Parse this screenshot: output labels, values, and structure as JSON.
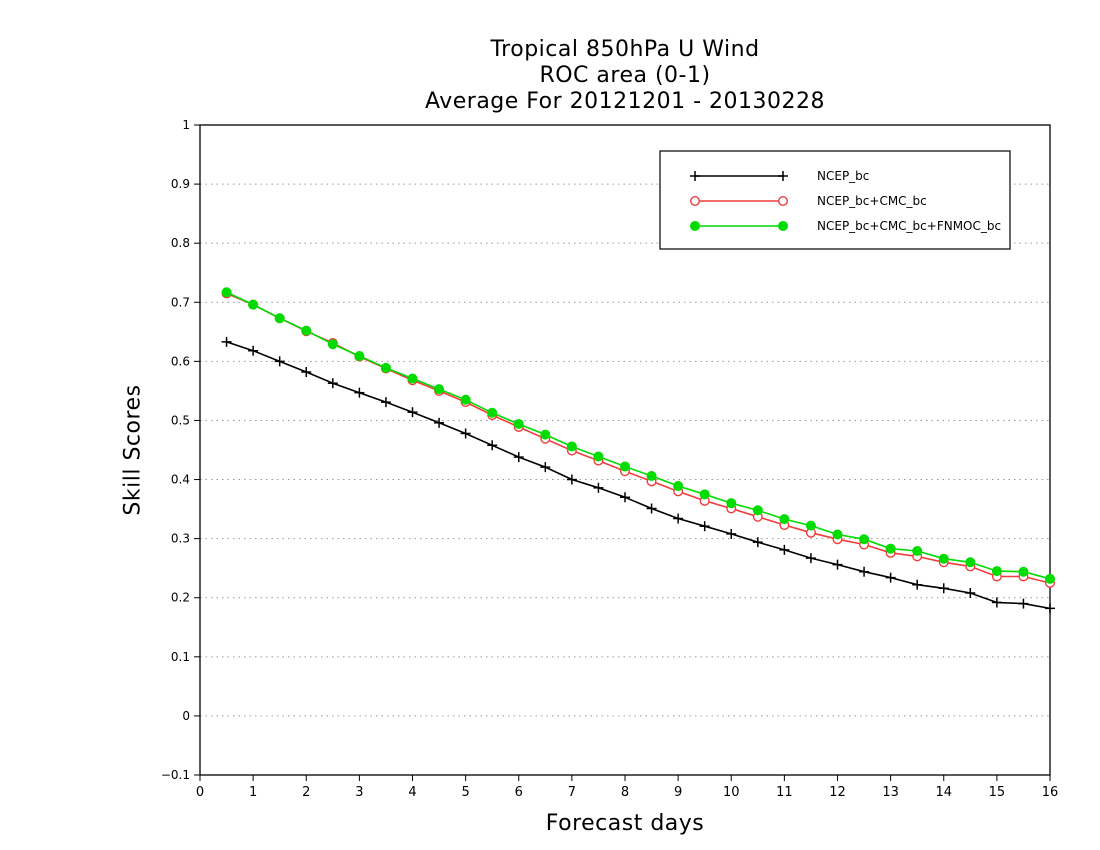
{
  "chart_data": {
    "type": "line",
    "title": [
      "Tropical 850hPa U Wind",
      "ROC area (0-1)",
      "Average For 20121201 - 20130228"
    ],
    "xlabel": "Forecast days",
    "ylabel": "Skill Scores",
    "xlim": [
      0,
      16
    ],
    "ylim": [
      -0.1,
      1
    ],
    "xticks": [
      0,
      1,
      2,
      3,
      4,
      5,
      6,
      7,
      8,
      9,
      10,
      11,
      12,
      13,
      14,
      15,
      16
    ],
    "xtick_labels": [
      "0",
      "1",
      "2",
      "3",
      "4",
      "5",
      "6",
      "7",
      "8",
      "9",
      "10",
      "11",
      "12",
      "13",
      "14",
      "15",
      "16"
    ],
    "yticks": [
      -0.1,
      0,
      0.1,
      0.2,
      0.3,
      0.4,
      0.5,
      0.6,
      0.7,
      0.8,
      0.9,
      1
    ],
    "ytick_labels": [
      "−0.1",
      "0",
      "0.1",
      "0.2",
      "0.3",
      "0.4",
      "0.5",
      "0.6",
      "0.7",
      "0.8",
      "0.9",
      "1"
    ],
    "grid": "horizontal dotted",
    "legend_position": "top-right",
    "x": [
      0.5,
      1,
      1.5,
      2,
      2.5,
      3,
      3.5,
      4,
      4.5,
      5,
      5.5,
      6,
      6.5,
      7,
      7.5,
      8,
      8.5,
      9,
      9.5,
      10,
      10.5,
      11,
      11.5,
      12,
      12.5,
      13,
      13.5,
      14,
      14.5,
      15,
      15.5,
      16
    ],
    "series": [
      {
        "name": "NCEP_bc",
        "color": "#000000",
        "marker": "plus",
        "values": [
          0.633,
          0.618,
          0.6,
          0.582,
          0.563,
          0.547,
          0.531,
          0.514,
          0.496,
          0.478,
          0.458,
          0.438,
          0.421,
          0.4,
          0.386,
          0.37,
          0.351,
          0.334,
          0.321,
          0.308,
          0.294,
          0.281,
          0.267,
          0.256,
          0.244,
          0.234,
          0.222,
          0.216,
          0.208,
          0.192,
          0.19,
          0.182
        ]
      },
      {
        "name": "NCEP_bc+CMC_bc",
        "color": "#f03c3c",
        "marker": "open-circle",
        "values": [
          0.715,
          0.696,
          0.673,
          0.651,
          0.631,
          0.608,
          0.588,
          0.568,
          0.55,
          0.531,
          0.509,
          0.489,
          0.469,
          0.449,
          0.432,
          0.414,
          0.397,
          0.38,
          0.364,
          0.351,
          0.337,
          0.323,
          0.31,
          0.299,
          0.29,
          0.276,
          0.27,
          0.26,
          0.253,
          0.236,
          0.236,
          0.225
        ]
      },
      {
        "name": "NCEP_bc+CMC_bc+FNMOC_bc",
        "color": "#00dc00",
        "marker": "filled-circle",
        "values": [
          0.717,
          0.696,
          0.673,
          0.652,
          0.629,
          0.609,
          0.589,
          0.571,
          0.553,
          0.535,
          0.513,
          0.494,
          0.476,
          0.456,
          0.439,
          0.422,
          0.406,
          0.389,
          0.375,
          0.36,
          0.348,
          0.333,
          0.322,
          0.307,
          0.299,
          0.283,
          0.279,
          0.266,
          0.26,
          0.245,
          0.244,
          0.232
        ]
      }
    ]
  }
}
